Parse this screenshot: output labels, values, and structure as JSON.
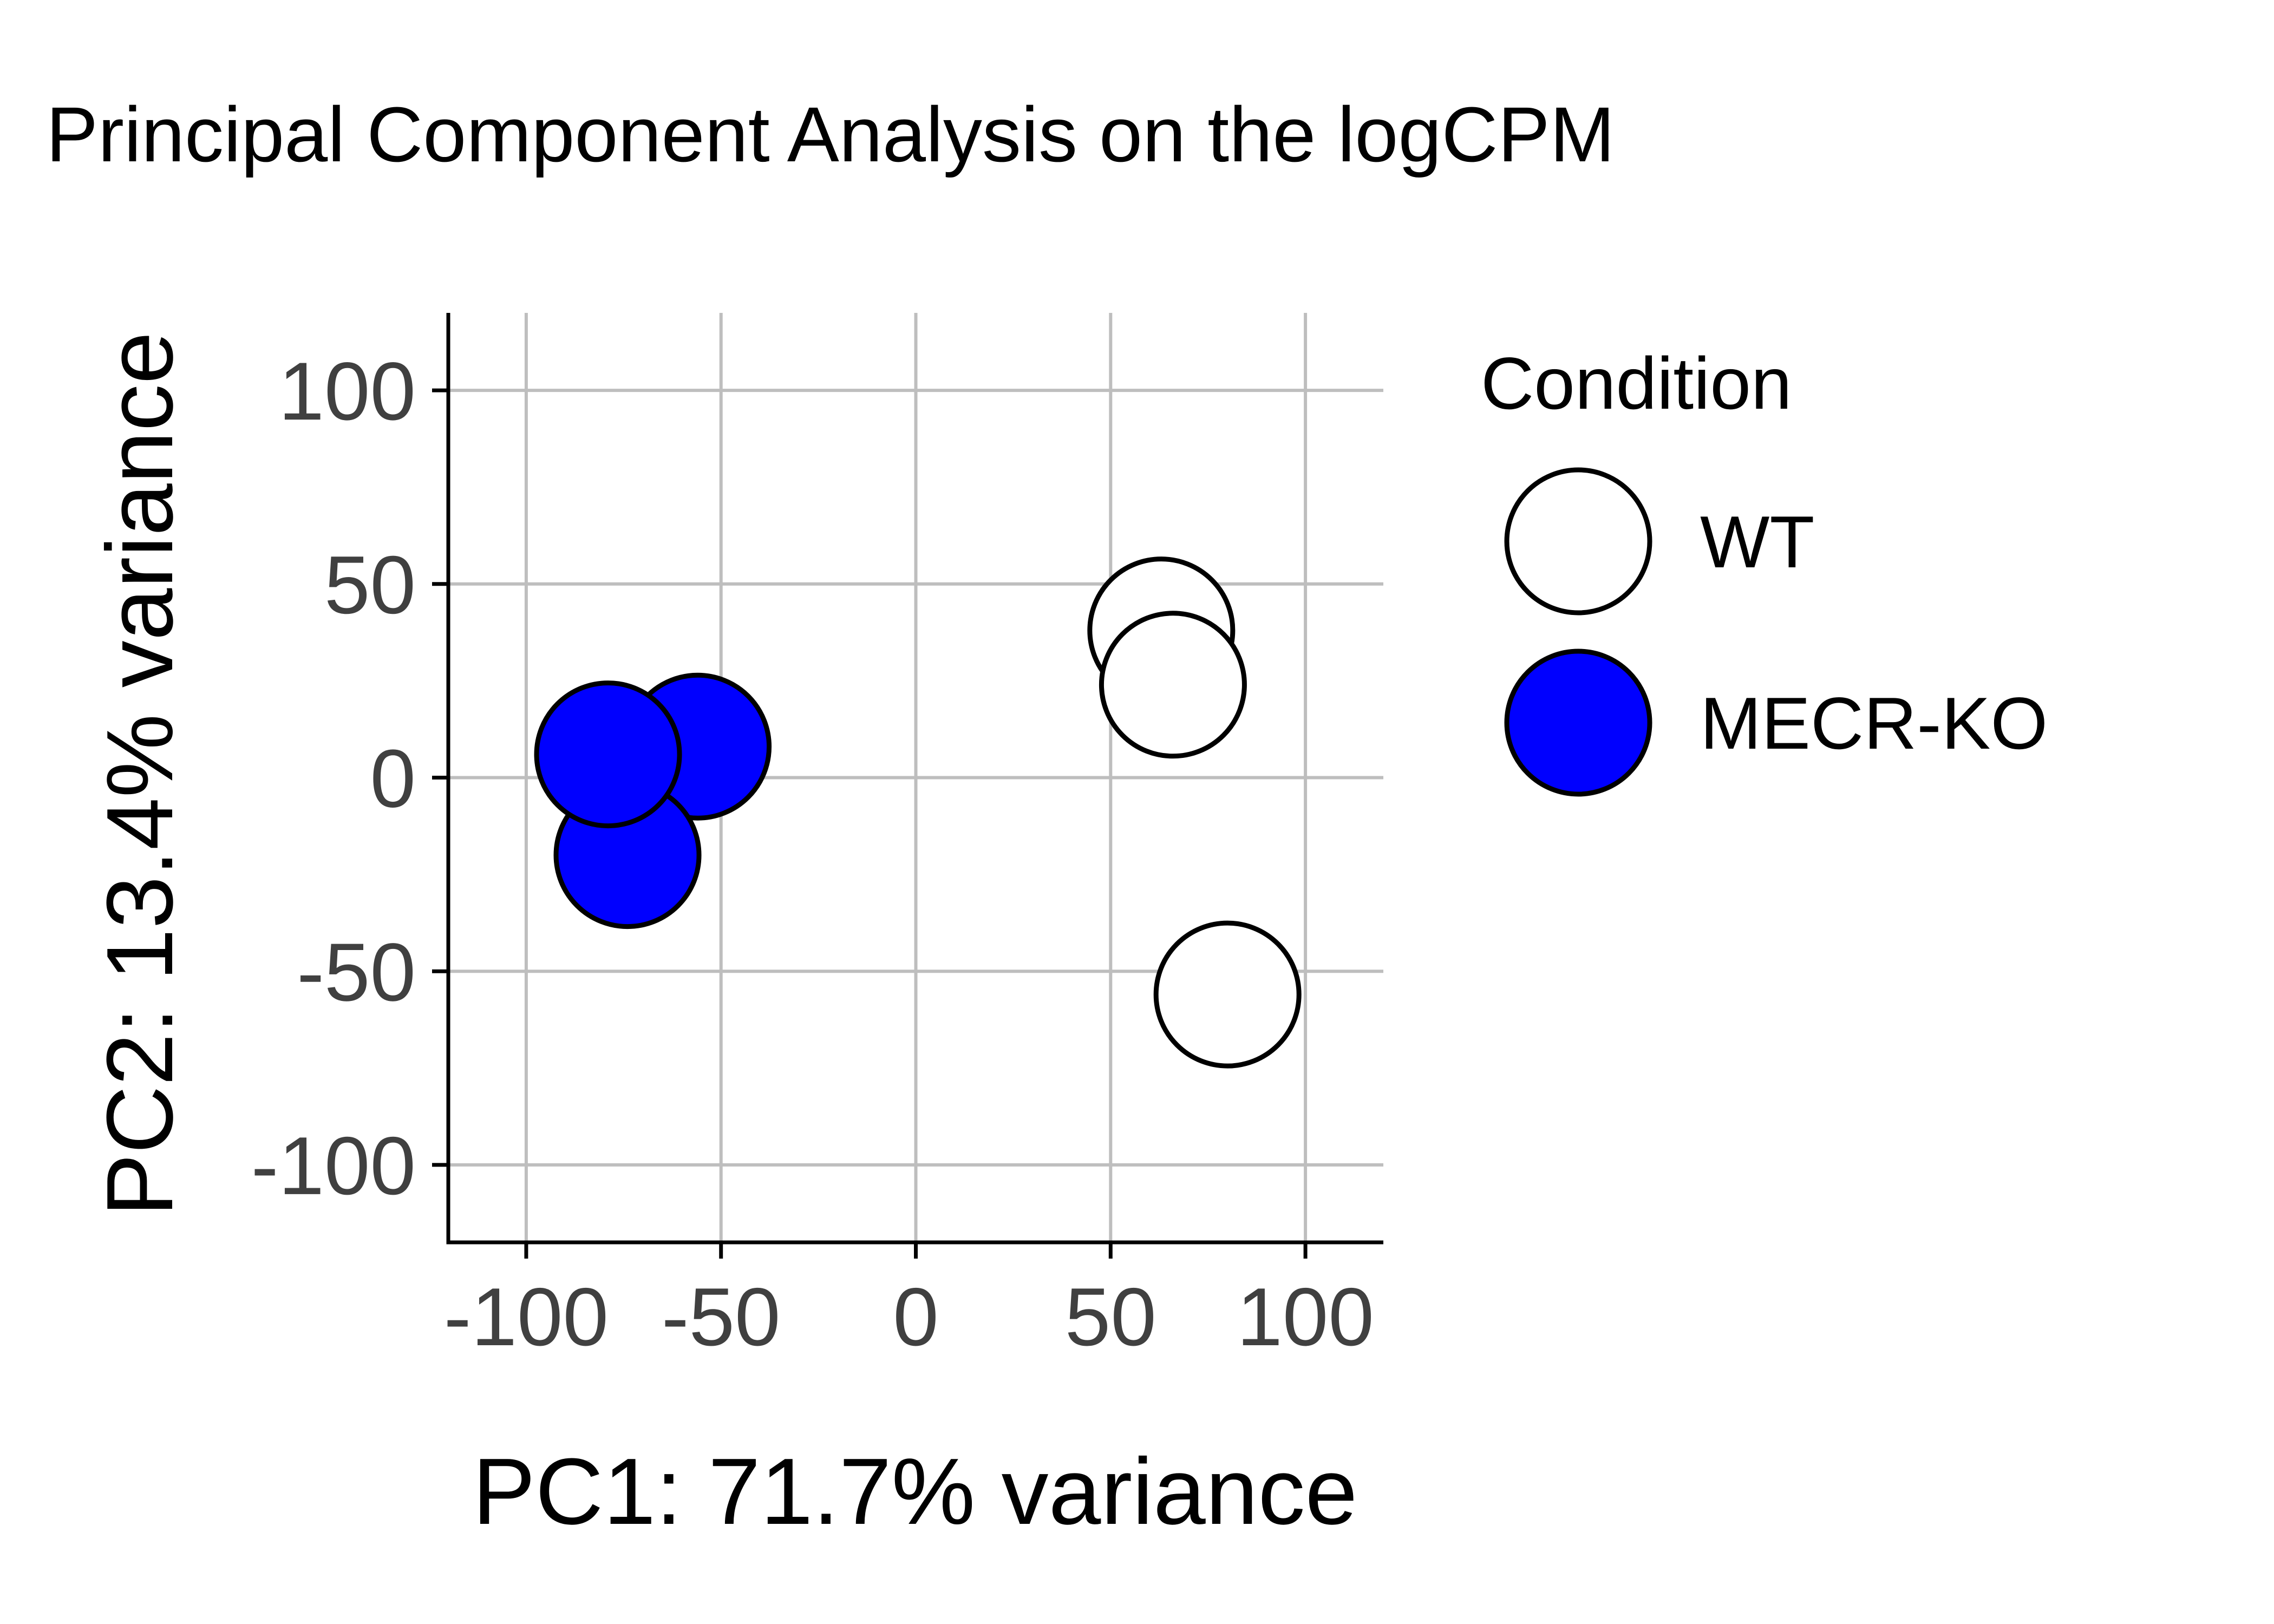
{
  "chart_data": {
    "type": "scatter",
    "title": "Principal Component Analysis on the logCPM",
    "xlabel": "PC1: 71.7% variance",
    "ylabel": "PC2: 13.4% variance",
    "xlim": [
      -120,
      120
    ],
    "ylim": [
      -120,
      120
    ],
    "xticks": [
      -100,
      -50,
      0,
      50,
      100
    ],
    "yticks": [
      -100,
      -50,
      0,
      50,
      100
    ],
    "xtick_labels": [
      "-100",
      "-50",
      "0",
      "50",
      "100"
    ],
    "ytick_labels": [
      "-100",
      "-50",
      "0",
      "50",
      "100"
    ],
    "grid": true,
    "legend": {
      "title": "Condition",
      "position": "right"
    },
    "series": [
      {
        "name": "WT",
        "color": "#ffffff",
        "stroke": "#000000",
        "points": [
          {
            "x": 63,
            "y": 38
          },
          {
            "x": 66,
            "y": 24
          },
          {
            "x": 80,
            "y": -56
          }
        ]
      },
      {
        "name": "MECR-KO",
        "color": "#0000ff",
        "stroke": "#000000",
        "points": [
          {
            "x": -56,
            "y": 8
          },
          {
            "x": -74,
            "y": -20
          },
          {
            "x": -79,
            "y": 6
          }
        ]
      }
    ]
  }
}
